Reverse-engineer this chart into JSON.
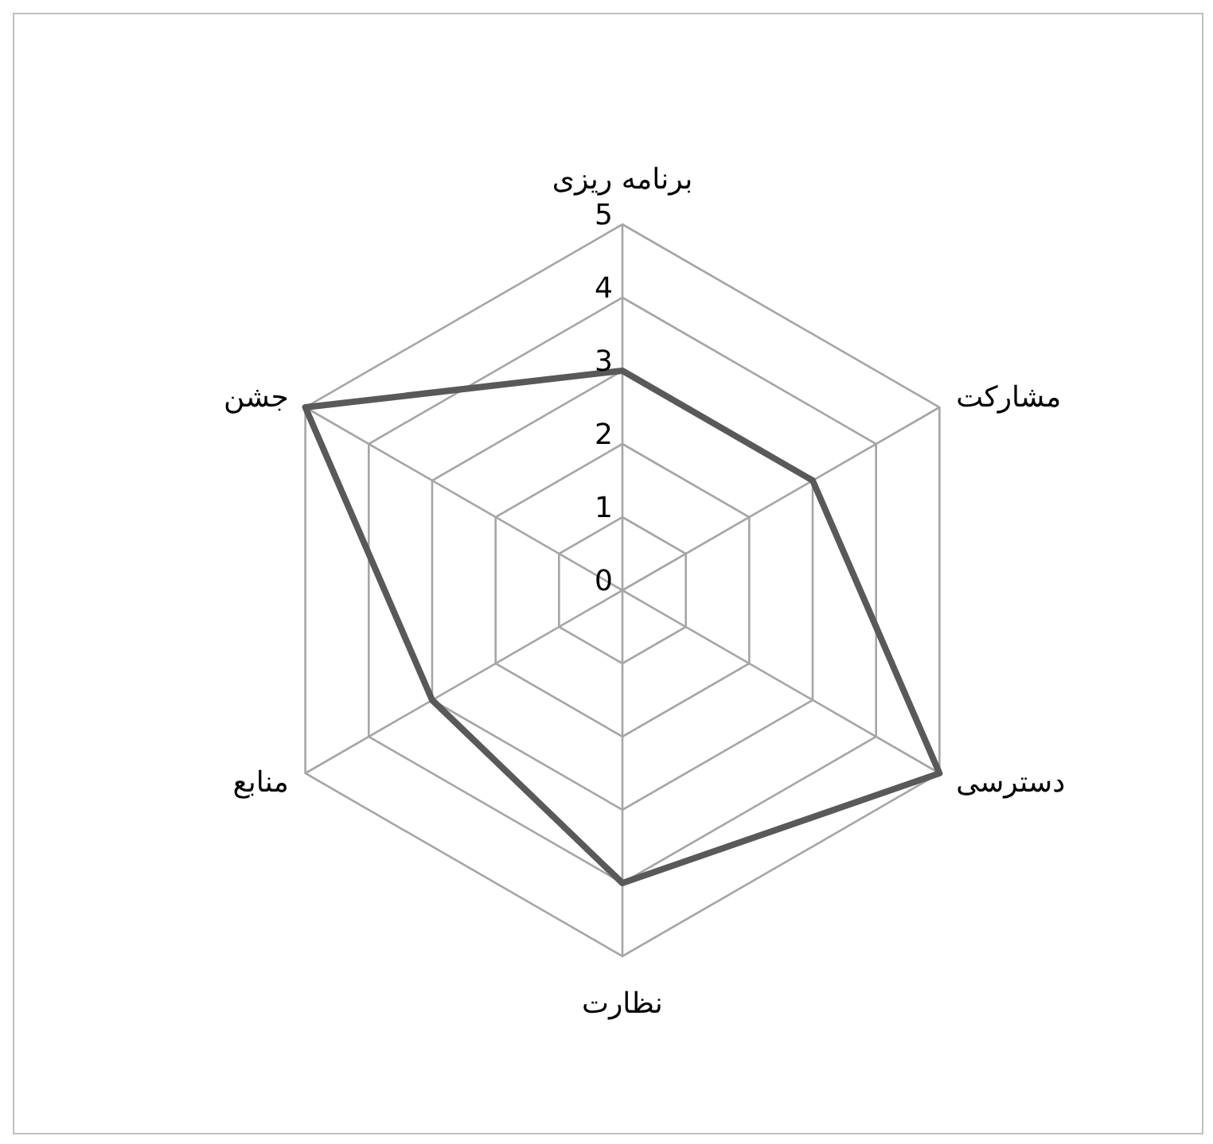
{
  "chart_data": {
    "type": "radar",
    "categories": [
      "برنامه ریزی",
      "مشارکت",
      "دسترسی",
      "نظارت",
      "منابع",
      "جشن"
    ],
    "series": [
      {
        "color": "#595959",
        "values": [
          3,
          3,
          5,
          4,
          3,
          5
        ]
      }
    ],
    "ylim": [
      0,
      5
    ],
    "yticks": [
      0,
      1,
      2,
      3,
      4,
      5
    ],
    "grid": true,
    "legend": false,
    "marker": "none",
    "line_style": "solid"
  }
}
